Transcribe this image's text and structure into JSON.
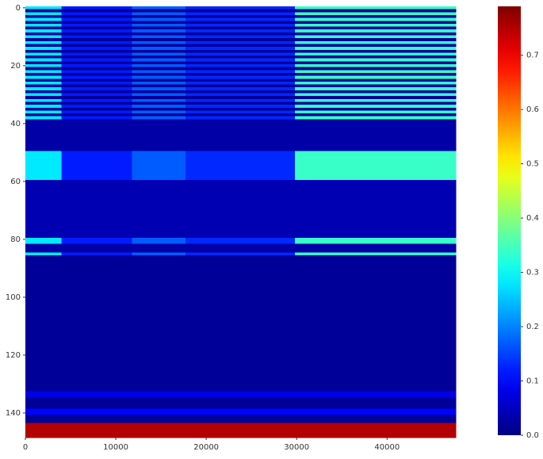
{
  "chart_data": {
    "type": "heatmap",
    "x_edges": [
      0,
      4000,
      11800,
      17700,
      29800,
      47600
    ],
    "y_edges": [
      -0.5,
      0.5,
      1.5,
      2.5,
      3.5,
      4.5,
      5.5,
      6.5,
      7.5,
      8.5,
      9.5,
      10.5,
      11.5,
      12.5,
      13.5,
      14.5,
      15.5,
      16.5,
      17.5,
      18.5,
      19.5,
      20.5,
      21.5,
      22.5,
      23.5,
      24.5,
      25.5,
      26.5,
      27.5,
      28.5,
      29.5,
      30.5,
      31.5,
      32.5,
      33.5,
      34.5,
      35.5,
      36.5,
      37.5,
      38.5,
      49.5,
      59.5,
      79.5,
      81.5,
      84.5,
      85.5,
      132.5,
      134.5,
      138.5,
      140.5,
      143.5,
      148.5
    ],
    "z": [
      [
        0.28,
        0.12,
        0.17,
        0.13,
        0.34
      ],
      [
        0.02,
        0.02,
        0.02,
        0.02,
        0.02
      ],
      [
        0.28,
        0.12,
        0.17,
        0.13,
        0.34
      ],
      [
        0.02,
        0.02,
        0.02,
        0.02,
        0.02
      ],
      [
        0.28,
        0.12,
        0.17,
        0.13,
        0.34
      ],
      [
        0.02,
        0.02,
        0.02,
        0.02,
        0.02
      ],
      [
        0.28,
        0.12,
        0.17,
        0.13,
        0.34
      ],
      [
        0.02,
        0.02,
        0.02,
        0.02,
        0.02
      ],
      [
        0.28,
        0.12,
        0.17,
        0.13,
        0.34
      ],
      [
        0.02,
        0.02,
        0.02,
        0.02,
        0.02
      ],
      [
        0.28,
        0.12,
        0.17,
        0.13,
        0.34
      ],
      [
        0.02,
        0.02,
        0.02,
        0.02,
        0.02
      ],
      [
        0.28,
        0.12,
        0.17,
        0.13,
        0.34
      ],
      [
        0.02,
        0.02,
        0.02,
        0.02,
        0.02
      ],
      [
        0.28,
        0.12,
        0.17,
        0.13,
        0.34
      ],
      [
        0.02,
        0.02,
        0.02,
        0.02,
        0.02
      ],
      [
        0.28,
        0.12,
        0.17,
        0.13,
        0.34
      ],
      [
        0.02,
        0.02,
        0.02,
        0.02,
        0.02
      ],
      [
        0.28,
        0.12,
        0.17,
        0.13,
        0.34
      ],
      [
        0.02,
        0.02,
        0.02,
        0.02,
        0.02
      ],
      [
        0.28,
        0.12,
        0.17,
        0.13,
        0.34
      ],
      [
        0.02,
        0.02,
        0.02,
        0.02,
        0.02
      ],
      [
        0.28,
        0.12,
        0.17,
        0.13,
        0.34
      ],
      [
        0.02,
        0.02,
        0.02,
        0.02,
        0.02
      ],
      [
        0.28,
        0.12,
        0.17,
        0.13,
        0.34
      ],
      [
        0.02,
        0.02,
        0.02,
        0.02,
        0.02
      ],
      [
        0.28,
        0.12,
        0.17,
        0.13,
        0.34
      ],
      [
        0.02,
        0.02,
        0.02,
        0.02,
        0.02
      ],
      [
        0.28,
        0.12,
        0.17,
        0.13,
        0.34
      ],
      [
        0.02,
        0.02,
        0.02,
        0.02,
        0.02
      ],
      [
        0.28,
        0.12,
        0.17,
        0.13,
        0.34
      ],
      [
        0.02,
        0.02,
        0.02,
        0.02,
        0.02
      ],
      [
        0.28,
        0.12,
        0.17,
        0.13,
        0.34
      ],
      [
        0.02,
        0.02,
        0.02,
        0.02,
        0.02
      ],
      [
        0.28,
        0.12,
        0.17,
        0.13,
        0.34
      ],
      [
        0.02,
        0.02,
        0.02,
        0.02,
        0.02
      ],
      [
        0.28,
        0.12,
        0.17,
        0.13,
        0.34
      ],
      [
        0.02,
        0.02,
        0.02,
        0.02,
        0.02
      ],
      [
        0.28,
        0.12,
        0.17,
        0.13,
        0.34
      ],
      [
        0.03,
        0.03,
        0.03,
        0.03,
        0.03
      ],
      [
        0.28,
        0.12,
        0.17,
        0.13,
        0.34
      ],
      [
        0.04,
        0.04,
        0.04,
        0.04,
        0.04
      ],
      [
        0.28,
        0.12,
        0.17,
        0.13,
        0.34
      ],
      [
        0.03,
        0.03,
        0.03,
        0.03,
        0.03
      ],
      [
        0.28,
        0.12,
        0.17,
        0.13,
        0.34
      ],
      [
        0.02,
        0.02,
        0.02,
        0.02,
        0.02
      ],
      [
        0.08,
        0.08,
        0.08,
        0.08,
        0.08
      ],
      [
        0.02,
        0.02,
        0.02,
        0.02,
        0.02
      ],
      [
        0.1,
        0.1,
        0.1,
        0.1,
        0.1
      ],
      [
        0.02,
        0.02,
        0.02,
        0.02,
        0.02
      ],
      [
        0.75,
        0.75,
        0.75,
        0.75,
        0.75
      ]
    ],
    "colormap": "jet",
    "xlim": [
      0,
      47600
    ],
    "xticks": [
      0,
      10000,
      20000,
      30000,
      40000
    ],
    "ylim": [
      148.5,
      -0.5
    ],
    "yticks": [
      0,
      20,
      40,
      60,
      80,
      100,
      120,
      140
    ],
    "clim": [
      0,
      0.79
    ],
    "cticks": [
      {
        "value": 0,
        "label": "0.0"
      },
      0.1,
      0.2,
      0.3,
      0.4,
      0.5,
      0.6,
      0.7
    ]
  }
}
